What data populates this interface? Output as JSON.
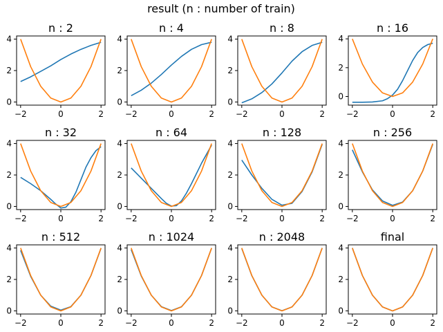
{
  "figure": {
    "suptitle": "result (n : number of train)"
  },
  "colors": {
    "prediction": "#1f77b4",
    "target": "#ff7f0e"
  },
  "chart_data": [
    {
      "type": "line",
      "title": "n : 2",
      "xlim": [
        -2.2,
        2.2
      ],
      "ylim": [
        -0.2,
        4.2
      ],
      "xticks": [
        -2,
        0,
        2
      ],
      "yticks": [
        0,
        2,
        4
      ],
      "series": [
        {
          "role": "prediction",
          "x": [
            -2,
            -1.5,
            -1,
            -0.5,
            0,
            0.5,
            1,
            1.5,
            2
          ],
          "y": [
            1.3,
            1.6,
            1.95,
            2.3,
            2.7,
            3.05,
            3.35,
            3.6,
            3.8
          ]
        },
        {
          "role": "target",
          "x": [
            -2,
            -1.5,
            -1,
            -0.5,
            0,
            0.5,
            1,
            1.5,
            2
          ],
          "y": [
            4,
            2.25,
            1,
            0.25,
            0,
            0.25,
            1,
            2.25,
            4
          ]
        }
      ]
    },
    {
      "type": "line",
      "title": "n : 4",
      "xlim": [
        -2.2,
        2.2
      ],
      "ylim": [
        -0.2,
        4.2
      ],
      "xticks": [
        -2,
        0,
        2
      ],
      "yticks": [
        0,
        2,
        4
      ],
      "series": [
        {
          "role": "prediction",
          "x": [
            -2,
            -1.5,
            -1,
            -0.5,
            0,
            0.5,
            1,
            1.5,
            2
          ],
          "y": [
            0.4,
            0.75,
            1.2,
            1.75,
            2.35,
            2.9,
            3.35,
            3.65,
            3.8
          ]
        },
        {
          "role": "target",
          "x": [
            -2,
            -1.5,
            -1,
            -0.5,
            0,
            0.5,
            1,
            1.5,
            2
          ],
          "y": [
            4,
            2.25,
            1,
            0.25,
            0,
            0.25,
            1,
            2.25,
            4
          ]
        }
      ]
    },
    {
      "type": "line",
      "title": "n : 8",
      "xlim": [
        -2.2,
        2.2
      ],
      "ylim": [
        -0.2,
        4.2
      ],
      "xticks": [
        -2,
        0,
        2
      ],
      "yticks": [
        0,
        2,
        4
      ],
      "series": [
        {
          "role": "prediction",
          "x": [
            -2,
            -1.5,
            -1,
            -0.5,
            0,
            0.5,
            1,
            1.5,
            2
          ],
          "y": [
            -0.05,
            0.2,
            0.6,
            1.15,
            1.85,
            2.6,
            3.2,
            3.6,
            3.8
          ]
        },
        {
          "role": "target",
          "x": [
            -2,
            -1.5,
            -1,
            -0.5,
            0,
            0.5,
            1,
            1.5,
            2
          ],
          "y": [
            4,
            2.25,
            1,
            0.25,
            0,
            0.25,
            1,
            2.25,
            4
          ]
        }
      ]
    },
    {
      "type": "line",
      "title": "n : 16",
      "xlim": [
        -2.2,
        2.2
      ],
      "ylim": [
        -0.6,
        4.2
      ],
      "xticks": [
        -2,
        0,
        2
      ],
      "yticks": [
        0,
        2,
        4
      ],
      "series": [
        {
          "role": "prediction",
          "x": [
            -2,
            -1.5,
            -1,
            -0.5,
            -0.25,
            0,
            0.25,
            0.5,
            0.75,
            1,
            1.25,
            1.5,
            1.75,
            2
          ],
          "y": [
            -0.4,
            -0.4,
            -0.38,
            -0.3,
            -0.15,
            0.1,
            0.5,
            1.1,
            1.8,
            2.5,
            3.05,
            3.4,
            3.6,
            3.7
          ]
        },
        {
          "role": "target",
          "x": [
            -2,
            -1.5,
            -1,
            -0.5,
            0,
            0.5,
            1,
            1.5,
            2
          ],
          "y": [
            4,
            2.25,
            1,
            0.25,
            0,
            0.25,
            1,
            2.25,
            4
          ]
        }
      ]
    },
    {
      "type": "line",
      "title": "n : 32",
      "xlim": [
        -2.2,
        2.2
      ],
      "ylim": [
        -0.2,
        4.2
      ],
      "xticks": [
        -2,
        0,
        2
      ],
      "yticks": [
        0,
        2,
        4
      ],
      "series": [
        {
          "role": "prediction",
          "x": [
            -2,
            -1.5,
            -1,
            -0.5,
            -0.25,
            0,
            0.25,
            0.5,
            0.75,
            1,
            1.25,
            1.5,
            1.75,
            2
          ],
          "y": [
            1.85,
            1.45,
            1.0,
            0.45,
            0.15,
            -0.1,
            -0.05,
            0.3,
            0.9,
            1.7,
            2.5,
            3.1,
            3.55,
            3.8
          ]
        },
        {
          "role": "target",
          "x": [
            -2,
            -1.5,
            -1,
            -0.5,
            0,
            0.5,
            1,
            1.5,
            2
          ],
          "y": [
            4,
            2.25,
            1,
            0.25,
            0,
            0.25,
            1,
            2.25,
            4
          ]
        }
      ]
    },
    {
      "type": "line",
      "title": "n : 64",
      "xlim": [
        -2.2,
        2.2
      ],
      "ylim": [
        -0.2,
        4.2
      ],
      "xticks": [
        -2,
        0,
        2
      ],
      "yticks": [
        0,
        2,
        4
      ],
      "series": [
        {
          "role": "prediction",
          "x": [
            -2,
            -1.5,
            -1,
            -0.5,
            -0.25,
            0,
            0.25,
            0.5,
            0.75,
            1,
            1.5,
            2
          ],
          "y": [
            2.45,
            1.8,
            1.15,
            0.5,
            0.2,
            0.02,
            0.05,
            0.35,
            0.85,
            1.45,
            2.75,
            3.9
          ]
        },
        {
          "role": "target",
          "x": [
            -2,
            -1.5,
            -1,
            -0.5,
            0,
            0.5,
            1,
            1.5,
            2
          ],
          "y": [
            4,
            2.25,
            1,
            0.25,
            0,
            0.25,
            1,
            2.25,
            4
          ]
        }
      ]
    },
    {
      "type": "line",
      "title": "n : 128",
      "xlim": [
        -2.2,
        2.2
      ],
      "ylim": [
        -0.2,
        4.2
      ],
      "xticks": [
        -2,
        0,
        2
      ],
      "yticks": [
        0,
        2,
        4
      ],
      "series": [
        {
          "role": "prediction",
          "x": [
            -2,
            -1.5,
            -1,
            -0.5,
            0,
            0.5,
            1,
            1.5,
            2
          ],
          "y": [
            2.95,
            2.0,
            1.15,
            0.45,
            0.08,
            0.2,
            0.95,
            2.2,
            3.95
          ]
        },
        {
          "role": "target",
          "x": [
            -2,
            -1.5,
            -1,
            -0.5,
            0,
            0.5,
            1,
            1.5,
            2
          ],
          "y": [
            4,
            2.25,
            1,
            0.25,
            0,
            0.25,
            1,
            2.25,
            4
          ]
        }
      ]
    },
    {
      "type": "line",
      "title": "n : 256",
      "xlim": [
        -2.2,
        2.2
      ],
      "ylim": [
        -0.2,
        4.2
      ],
      "xticks": [
        -2,
        0,
        2
      ],
      "yticks": [
        0,
        2,
        4
      ],
      "series": [
        {
          "role": "prediction",
          "x": [
            -2,
            -1.5,
            -1,
            -0.5,
            0,
            0.5,
            1,
            1.5,
            2
          ],
          "y": [
            3.6,
            2.2,
            1.05,
            0.35,
            0.07,
            0.28,
            1.0,
            2.25,
            3.95
          ]
        },
        {
          "role": "target",
          "x": [
            -2,
            -1.5,
            -1,
            -0.5,
            0,
            0.5,
            1,
            1.5,
            2
          ],
          "y": [
            4,
            2.25,
            1,
            0.25,
            0,
            0.25,
            1,
            2.25,
            4
          ]
        }
      ]
    },
    {
      "type": "line",
      "title": "n : 512",
      "xlim": [
        -2.2,
        2.2
      ],
      "ylim": [
        -0.2,
        4.2
      ],
      "xticks": [
        -2,
        0,
        2
      ],
      "yticks": [
        0,
        2,
        4
      ],
      "series": [
        {
          "role": "prediction",
          "x": [
            -2,
            -1.5,
            -1,
            -0.5,
            0,
            0.5,
            1,
            1.5,
            2
          ],
          "y": [
            3.85,
            2.2,
            1.0,
            0.3,
            0.05,
            0.27,
            1.0,
            2.25,
            3.98
          ]
        },
        {
          "role": "target",
          "x": [
            -2,
            -1.5,
            -1,
            -0.5,
            0,
            0.5,
            1,
            1.5,
            2
          ],
          "y": [
            4,
            2.25,
            1,
            0.25,
            0,
            0.25,
            1,
            2.25,
            4
          ]
        }
      ]
    },
    {
      "type": "line",
      "title": "n : 1024",
      "xlim": [
        -2.2,
        2.2
      ],
      "ylim": [
        -0.2,
        4.2
      ],
      "xticks": [
        -2,
        0,
        2
      ],
      "yticks": [
        0,
        2,
        4
      ],
      "series": [
        {
          "role": "prediction",
          "x": [
            -2,
            -1.5,
            -1,
            -0.5,
            0,
            0.5,
            1,
            1.5,
            2
          ],
          "y": [
            3.9,
            2.22,
            1.0,
            0.27,
            0.02,
            0.26,
            1.0,
            2.25,
            3.99
          ]
        },
        {
          "role": "target",
          "x": [
            -2,
            -1.5,
            -1,
            -0.5,
            0,
            0.5,
            1,
            1.5,
            2
          ],
          "y": [
            4,
            2.25,
            1,
            0.25,
            0,
            0.25,
            1,
            2.25,
            4
          ]
        }
      ]
    },
    {
      "type": "line",
      "title": "n : 2048",
      "xlim": [
        -2.2,
        2.2
      ],
      "ylim": [
        -0.2,
        4.2
      ],
      "xticks": [
        -2,
        0,
        2
      ],
      "yticks": [
        0,
        2,
        4
      ],
      "series": [
        {
          "role": "prediction",
          "x": [
            -2,
            -1.5,
            -1,
            -0.5,
            0,
            0.5,
            1,
            1.5,
            2
          ],
          "y": [
            3.97,
            2.24,
            1.0,
            0.25,
            0.01,
            0.25,
            1.0,
            2.25,
            4.0
          ]
        },
        {
          "role": "target",
          "x": [
            -2,
            -1.5,
            -1,
            -0.5,
            0,
            0.5,
            1,
            1.5,
            2
          ],
          "y": [
            4,
            2.25,
            1,
            0.25,
            0,
            0.25,
            1,
            2.25,
            4
          ]
        }
      ]
    },
    {
      "type": "line",
      "title": "final",
      "xlim": [
        -2.2,
        2.2
      ],
      "ylim": [
        -0.2,
        4.2
      ],
      "xticks": [
        -2,
        0,
        2
      ],
      "yticks": [
        0,
        2,
        4
      ],
      "series": [
        {
          "role": "prediction",
          "x": [
            -2,
            -1.5,
            -1,
            -0.5,
            0,
            0.5,
            1,
            1.5,
            2
          ],
          "y": [
            4.0,
            2.25,
            1.0,
            0.25,
            0.0,
            0.25,
            1.0,
            2.25,
            4.0
          ]
        },
        {
          "role": "target",
          "x": [
            -2,
            -1.5,
            -1,
            -0.5,
            0,
            0.5,
            1,
            1.5,
            2
          ],
          "y": [
            4,
            2.25,
            1,
            0.25,
            0,
            0.25,
            1,
            2.25,
            4
          ]
        }
      ]
    }
  ]
}
